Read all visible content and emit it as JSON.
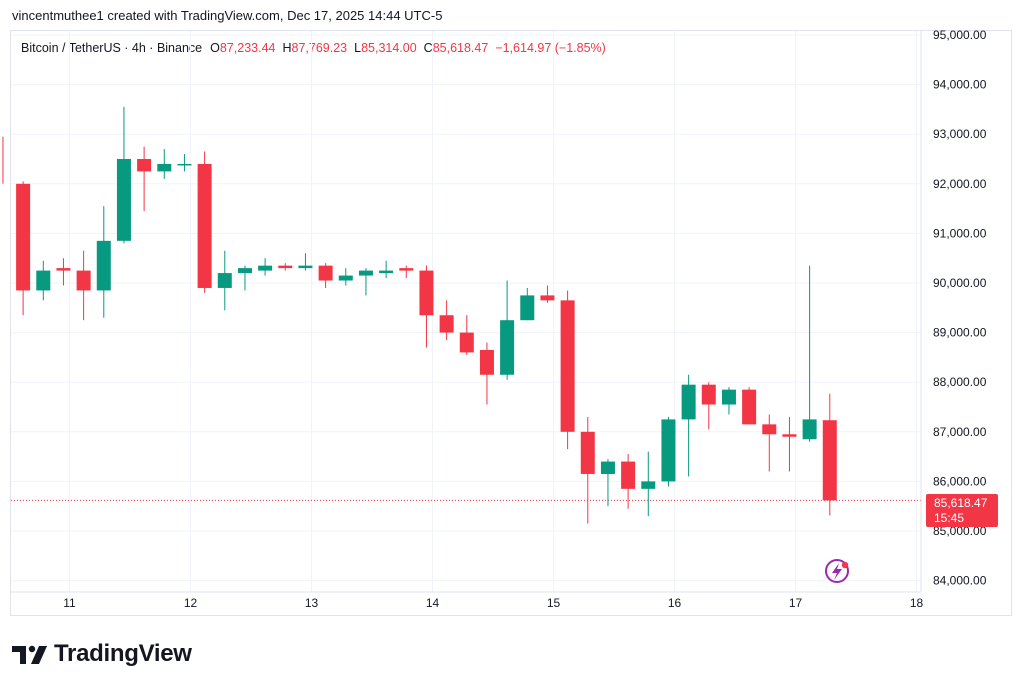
{
  "header": {
    "caption": "vincentmuthee1 created with TradingView.com, Dec 17, 2025 14:44 UTC-5"
  },
  "legend": {
    "symbol": "Bitcoin / TetherUS · 4h · Binance",
    "open_label": "O",
    "open": "87,233.44",
    "high_label": "H",
    "high": "87,769.23",
    "low_label": "L",
    "low": "85,314.00",
    "close_label": "C",
    "close": "85,618.47",
    "change": "−1,614.97 (−1.85%)"
  },
  "price_badge": {
    "price": "85,618.47",
    "countdown": "15:45"
  },
  "footer": {
    "brand": "TradingView"
  },
  "colors": {
    "up": "#089981",
    "down": "#f23645",
    "grid": "#f0f3fa",
    "axis_text": "#131722",
    "last_price_line": "#f23645",
    "flash_icon": "#9c27b0"
  },
  "chart_data": {
    "type": "candlestick",
    "interval": "4h",
    "y_range": [
      83700,
      95000
    ],
    "y_ticks": [
      {
        "value": 95000,
        "label": "95,000.00"
      },
      {
        "value": 94000,
        "label": "94,000.00"
      },
      {
        "value": 93000,
        "label": "93,000.00"
      },
      {
        "value": 92000,
        "label": "92,000.00"
      },
      {
        "value": 91000,
        "label": "91,000.00"
      },
      {
        "value": 90000,
        "label": "90,000.00"
      },
      {
        "value": 89000,
        "label": "89,000.00"
      },
      {
        "value": 88000,
        "label": "88,000.00"
      },
      {
        "value": 87000,
        "label": "87,000.00"
      },
      {
        "value": 86000,
        "label": "86,000.00"
      },
      {
        "value": 85000,
        "label": "85,000.00"
      },
      {
        "value": 84000,
        "label": "84,000.00"
      }
    ],
    "x_ticks": [
      {
        "day": 11,
        "label": "11"
      },
      {
        "day": 12,
        "label": "12"
      },
      {
        "day": 13,
        "label": "13"
      },
      {
        "day": 14,
        "label": "14"
      },
      {
        "day": 15,
        "label": "15"
      },
      {
        "day": 16,
        "label": "16"
      },
      {
        "day": 17,
        "label": "17"
      },
      {
        "day": 18,
        "label": "18"
      }
    ],
    "first_candle_day": 10.45,
    "candles_per_day": 6,
    "last_price": 85618.47,
    "candles": [
      {
        "o": 92950,
        "h": 92950,
        "l": 92000,
        "c": 92000
      },
      {
        "o": 92000,
        "h": 92050,
        "l": 89350,
        "c": 89850
      },
      {
        "o": 89850,
        "h": 90450,
        "l": 89650,
        "c": 90250
      },
      {
        "o": 90300,
        "h": 90500,
        "l": 89950,
        "c": 90250
      },
      {
        "o": 90250,
        "h": 90650,
        "l": 89250,
        "c": 89850
      },
      {
        "o": 89850,
        "h": 91550,
        "l": 89300,
        "c": 90850
      },
      {
        "o": 90850,
        "h": 93550,
        "l": 90800,
        "c": 92500
      },
      {
        "o": 92500,
        "h": 92750,
        "l": 91450,
        "c": 92250
      },
      {
        "o": 92250,
        "h": 92700,
        "l": 92100,
        "c": 92400
      },
      {
        "o": 92400,
        "h": 92600,
        "l": 92250,
        "c": 92400
      },
      {
        "o": 92400,
        "h": 92650,
        "l": 89800,
        "c": 89900
      },
      {
        "o": 89900,
        "h": 90650,
        "l": 89450,
        "c": 90200
      },
      {
        "o": 90200,
        "h": 90350,
        "l": 89850,
        "c": 90300
      },
      {
        "o": 90250,
        "h": 90500,
        "l": 90150,
        "c": 90350
      },
      {
        "o": 90350,
        "h": 90400,
        "l": 90250,
        "c": 90300
      },
      {
        "o": 90300,
        "h": 90600,
        "l": 90250,
        "c": 90350
      },
      {
        "o": 90350,
        "h": 90400,
        "l": 89900,
        "c": 90050
      },
      {
        "o": 90050,
        "h": 90300,
        "l": 89950,
        "c": 90150
      },
      {
        "o": 90150,
        "h": 90300,
        "l": 89750,
        "c": 90250
      },
      {
        "o": 90200,
        "h": 90450,
        "l": 90100,
        "c": 90250
      },
      {
        "o": 90300,
        "h": 90350,
        "l": 90100,
        "c": 90250
      },
      {
        "o": 90250,
        "h": 90350,
        "l": 88700,
        "c": 89350
      },
      {
        "o": 89350,
        "h": 89650,
        "l": 88850,
        "c": 89000
      },
      {
        "o": 89000,
        "h": 89350,
        "l": 88550,
        "c": 88600
      },
      {
        "o": 88650,
        "h": 88800,
        "l": 87550,
        "c": 88150
      },
      {
        "o": 88150,
        "h": 90050,
        "l": 88050,
        "c": 89250
      },
      {
        "o": 89250,
        "h": 89900,
        "l": 89250,
        "c": 89750
      },
      {
        "o": 89750,
        "h": 89950,
        "l": 89600,
        "c": 89650
      },
      {
        "o": 89650,
        "h": 89850,
        "l": 86650,
        "c": 87000
      },
      {
        "o": 87000,
        "h": 87300,
        "l": 85150,
        "c": 86150
      },
      {
        "o": 86150,
        "h": 86450,
        "l": 85500,
        "c": 86400
      },
      {
        "o": 86400,
        "h": 86550,
        "l": 85450,
        "c": 85850
      },
      {
        "o": 85850,
        "h": 86600,
        "l": 85300,
        "c": 86000
      },
      {
        "o": 86000,
        "h": 87300,
        "l": 85900,
        "c": 87250
      },
      {
        "o": 87250,
        "h": 88150,
        "l": 86100,
        "c": 87950
      },
      {
        "o": 87950,
        "h": 88000,
        "l": 87050,
        "c": 87550
      },
      {
        "o": 87550,
        "h": 87900,
        "l": 87350,
        "c": 87850
      },
      {
        "o": 87850,
        "h": 87900,
        "l": 87150,
        "c": 87150
      },
      {
        "o": 87150,
        "h": 87350,
        "l": 86200,
        "c": 86950
      },
      {
        "o": 86950,
        "h": 87300,
        "l": 86200,
        "c": 86900
      },
      {
        "o": 86850,
        "h": 90350,
        "l": 86800,
        "c": 87250
      },
      {
        "o": 87233.44,
        "h": 87769.23,
        "l": 85314.0,
        "c": 85618.47
      }
    ]
  }
}
